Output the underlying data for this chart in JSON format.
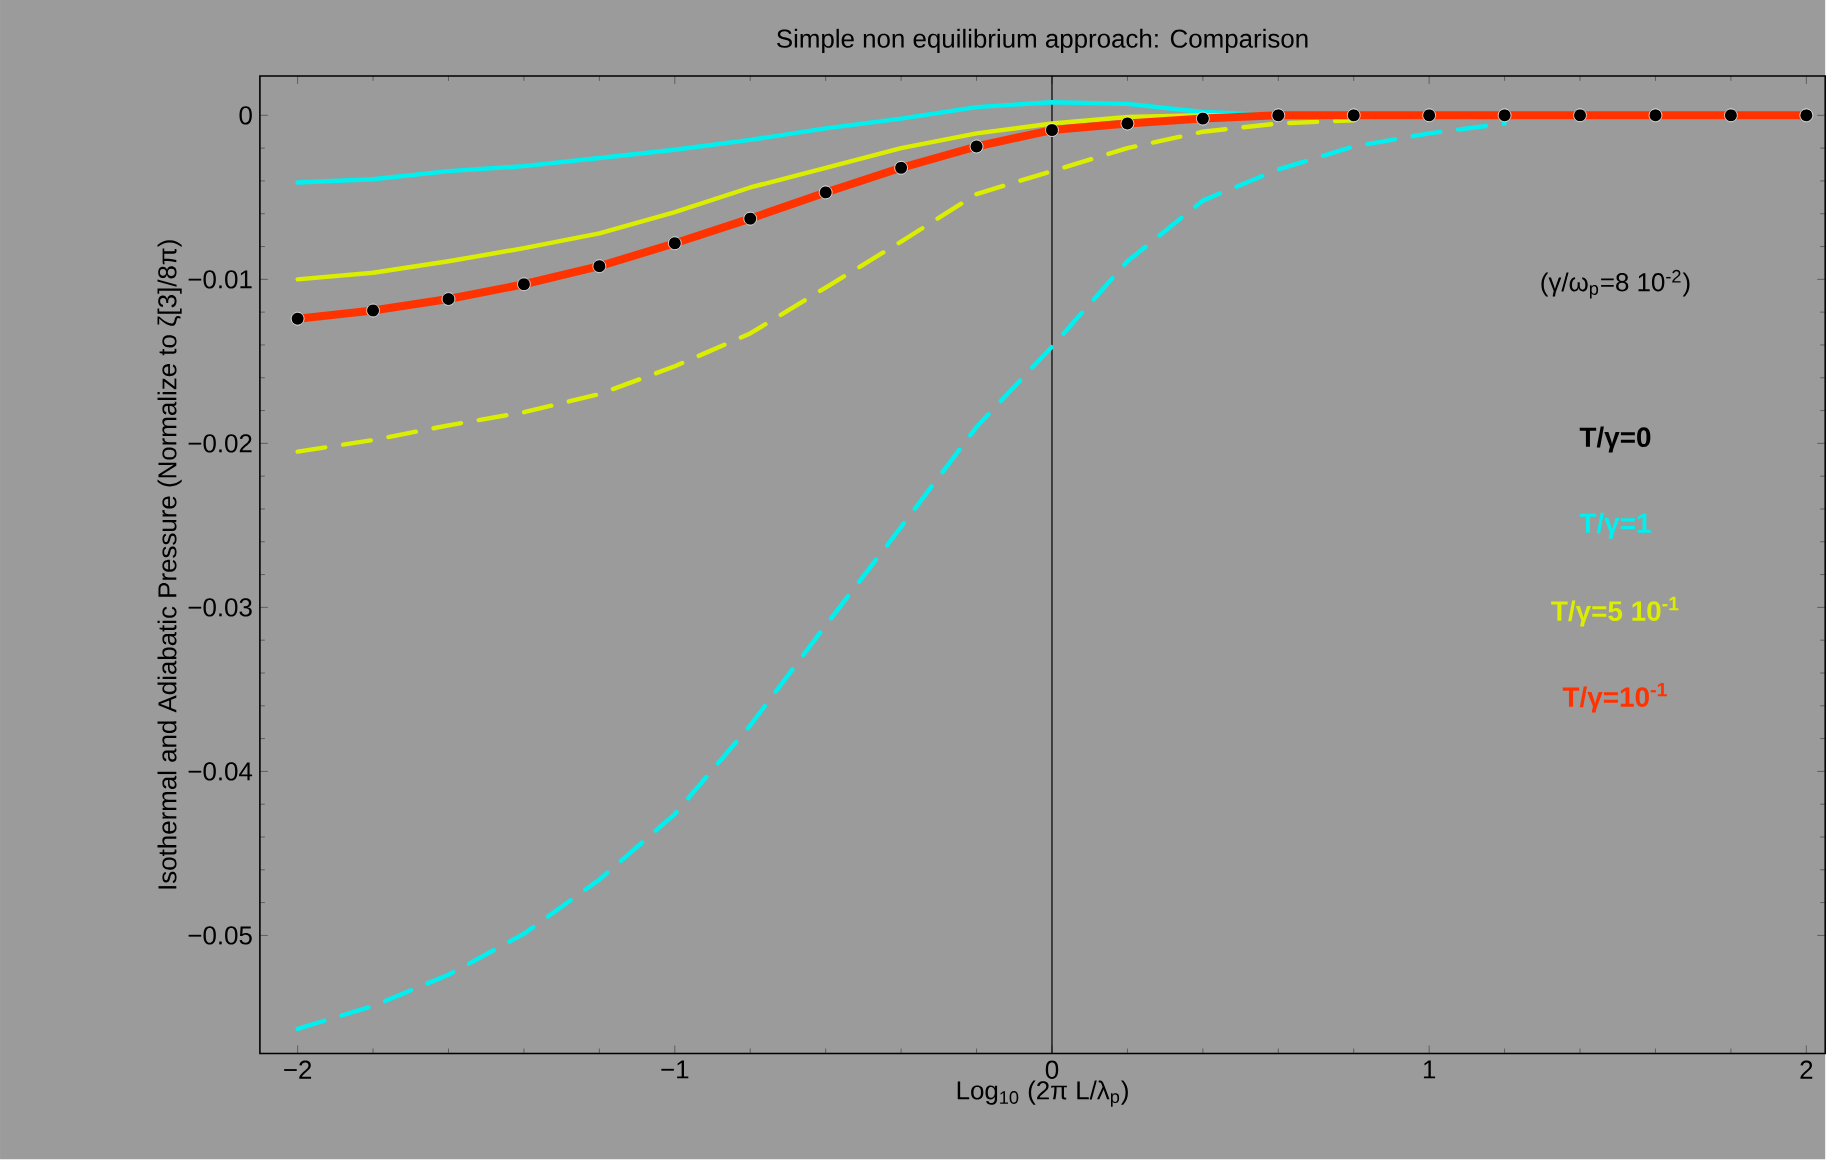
{
  "chart_data": {
    "type": "line",
    "title": "Simple  non equilibrium approach: Comparison",
    "xlabel": "Log$_{10}$ (2π L/λ$_{p}$)",
    "ylabel": "Isothermal and Adiabatic Pressure (Normalize to ζ[3]/8π)",
    "annotations": [
      "(γ/ω$_{p}$=8 10$^{-2}$)"
    ],
    "x": [
      -2,
      -1.8,
      -1.6,
      -1.4,
      -1.2,
      -1,
      -0.8,
      -0.6,
      -0.4,
      -0.2,
      0,
      0.2,
      0.4,
      0.6,
      0.8,
      1,
      1.2,
      1.4,
      1.6,
      1.8,
      2
    ],
    "series": [
      {
        "name": "T/γ=0",
        "type": "scatter",
        "marker": "circle",
        "color": "#000000",
        "values": [
          -0.0124,
          -0.0119,
          -0.0112,
          -0.0103,
          -0.0092,
          -0.0078,
          -0.0063,
          -0.0047,
          -0.0032,
          -0.0019,
          -0.0009,
          -0.0005,
          -0.0002,
          0,
          0,
          0,
          0,
          0,
          0,
          0,
          0
        ]
      },
      {
        "name": "T/γ=1",
        "color": "#00f0f0",
        "line_style": "solid",
        "values": [
          -0.0041,
          -0.0039,
          -0.0034,
          -0.0031,
          -0.0026,
          -0.0021,
          -0.0015,
          -0.0008,
          -0.0002,
          0.0005,
          0.0008,
          0.0007,
          0.0002,
          0,
          0,
          null,
          null,
          null,
          null,
          null,
          null
        ]
      },
      {
        "name": "T/γ=5 10$^{-1}$",
        "color": "#dcee00",
        "line_style": "solid",
        "values": [
          -0.01,
          -0.0096,
          -0.0089,
          -0.0081,
          -0.0072,
          -0.0059,
          -0.0044,
          -0.0032,
          -0.002,
          -0.0011,
          -0.0005,
          -0.0001,
          0,
          0,
          0,
          0,
          0,
          null,
          null,
          null,
          null
        ]
      },
      {
        "name": "T/γ=10$^{-1}$",
        "color": "#ff3300",
        "line_style": "solid",
        "values": [
          -0.0124,
          -0.0119,
          -0.0112,
          -0.0103,
          -0.0092,
          -0.0078,
          -0.0063,
          -0.0047,
          -0.0032,
          -0.0019,
          -0.0009,
          -0.0005,
          -0.0002,
          0,
          0,
          0,
          0,
          0,
          0,
          0,
          0
        ]
      },
      {
        "color": "#00f0f0",
        "line_style": "dashed",
        "values": [
          -0.0557,
          -0.0543,
          -0.0524,
          -0.0499,
          -0.0466,
          -0.0426,
          -0.0372,
          -0.0311,
          -0.0251,
          -0.019,
          -0.0141,
          -0.0089,
          -0.0052,
          -0.0033,
          -0.0019,
          -0.0011,
          -0.0005,
          null,
          null,
          null,
          null
        ]
      },
      {
        "color": "#dcee00",
        "line_style": "dashed",
        "values": [
          -0.0205,
          -0.0198,
          -0.0189,
          -0.0181,
          -0.017,
          -0.0153,
          -0.0133,
          -0.0105,
          -0.0077,
          -0.0048,
          -0.0034,
          -0.002,
          -0.001,
          -0.0005,
          -0.0003,
          null,
          null,
          null,
          null,
          null,
          null
        ]
      }
    ],
    "xlim": [
      -2.1,
      2.05
    ],
    "ylim": [
      -0.0572,
      0.0024
    ],
    "xticks": [
      {
        "value": -2,
        "label": "−2"
      },
      {
        "value": -1,
        "label": "−1"
      },
      0,
      1,
      2
    ],
    "yticks": [
      0,
      {
        "value": -0.01,
        "label": "−0.01"
      },
      {
        "value": -0.02,
        "label": "−0.02"
      },
      {
        "value": -0.03,
        "label": "−0.03"
      },
      {
        "value": -0.04,
        "label": "−0.04"
      },
      {
        "value": -0.05,
        "label": "−0.05"
      }
    ],
    "ref_lines": [
      {
        "axis": "x",
        "value": 0,
        "color": "#000000"
      }
    ],
    "legend": "right",
    "grid": false
  }
}
